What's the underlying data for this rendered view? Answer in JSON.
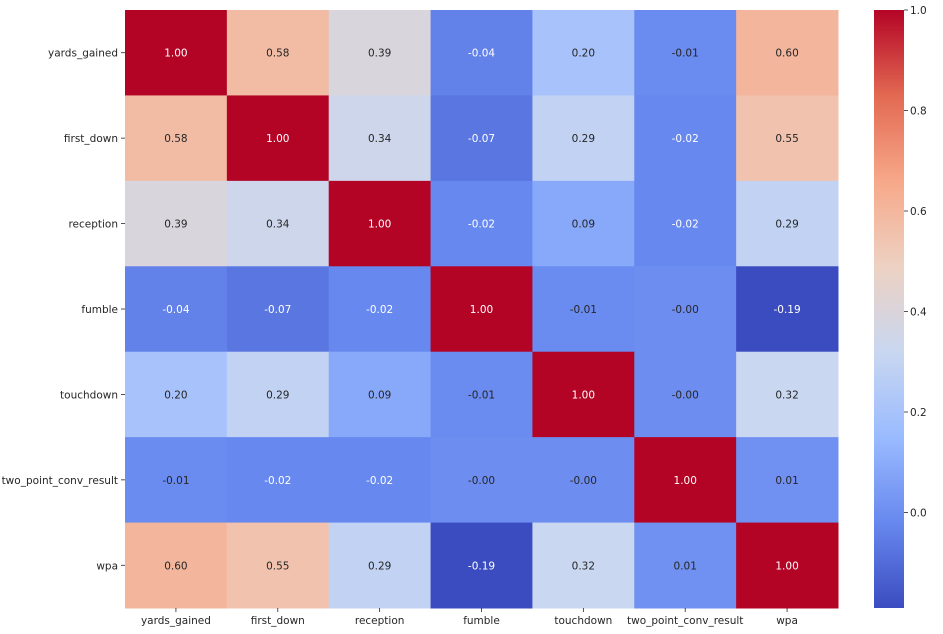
{
  "chart_data": {
    "type": "heatmap",
    "title": "",
    "xlabel": "",
    "ylabel": "",
    "rows": [
      "yards_gained",
      "first_down",
      "reception",
      "fumble",
      "touchdown",
      "two_point_conv_result",
      "wpa"
    ],
    "columns": [
      "yards_gained",
      "first_down",
      "reception",
      "fumble",
      "touchdown",
      "two_point_conv_result",
      "wpa"
    ],
    "values": [
      [
        1.0,
        0.58,
        0.39,
        -0.04,
        0.2,
        -0.01,
        0.6
      ],
      [
        0.58,
        1.0,
        0.34,
        -0.07,
        0.29,
        -0.02,
        0.55
      ],
      [
        0.39,
        0.34,
        1.0,
        -0.02,
        0.09,
        -0.02,
        0.29
      ],
      [
        -0.04,
        -0.07,
        -0.02,
        1.0,
        -0.01,
        -0.0,
        -0.19
      ],
      [
        0.2,
        0.29,
        0.09,
        -0.01,
        1.0,
        -0.0,
        0.32
      ],
      [
        -0.01,
        -0.02,
        -0.02,
        -0.0,
        -0.0,
        1.0,
        0.01
      ],
      [
        0.6,
        0.55,
        0.29,
        -0.19,
        0.32,
        0.01,
        1.0
      ]
    ],
    "value_labels": [
      [
        "1.00",
        "0.58",
        "0.39",
        "-0.04",
        "0.20",
        "-0.01",
        "0.60"
      ],
      [
        "0.58",
        "1.00",
        "0.34",
        "-0.07",
        "0.29",
        "-0.02",
        "0.55"
      ],
      [
        "0.39",
        "0.34",
        "1.00",
        "-0.02",
        "0.09",
        "-0.02",
        "0.29"
      ],
      [
        "-0.04",
        "-0.07",
        "-0.02",
        "1.00",
        "-0.01",
        "-0.00",
        "-0.19"
      ],
      [
        "0.20",
        "0.29",
        "0.09",
        "-0.01",
        "1.00",
        "-0.00",
        "0.32"
      ],
      [
        "-0.01",
        "-0.02",
        "-0.02",
        "-0.00",
        "-0.00",
        "1.00",
        "0.01"
      ],
      [
        "0.60",
        "0.55",
        "0.29",
        "-0.19",
        "0.32",
        "0.01",
        "1.00"
      ]
    ],
    "colormap": "coolwarm",
    "colormap_stops": [
      "#3b4cc0",
      "#6788ee",
      "#9abbff",
      "#c9d7f0",
      "#edd1c2",
      "#f7a889",
      "#e26952",
      "#b40426"
    ],
    "vmin": -0.19,
    "vmax": 1.0,
    "colorbar_ticks": [
      0.0,
      0.2,
      0.4,
      0.6,
      0.8,
      1.0
    ],
    "colorbar_tick_labels": [
      "0.0",
      "0.2",
      "0.4",
      "0.6",
      "0.8",
      "1.0"
    ],
    "annotation_dark_text_color": "#262626",
    "annotation_light_text_color": "#ffffff"
  }
}
